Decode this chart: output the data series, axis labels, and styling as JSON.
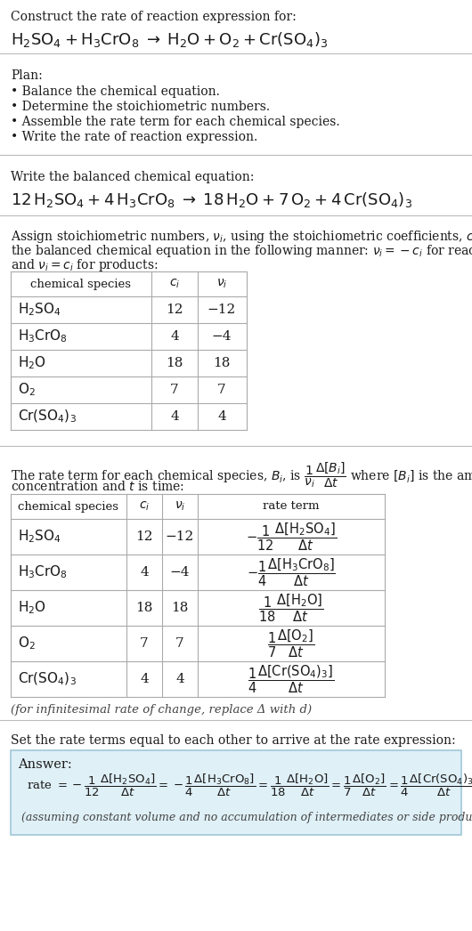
{
  "bg_color": "#ffffff",
  "text_color": "#1a1a1a",
  "title_line1": "Construct the rate of reaction expression for:",
  "plan_header": "Plan:",
  "plan_items": [
    "• Balance the chemical equation.",
    "• Determine the stoichiometric numbers.",
    "• Assemble the rate term for each chemical species.",
    "• Write the rate of reaction expression."
  ],
  "balanced_header": "Write the balanced chemical equation:",
  "table1_headers": [
    "chemical species",
    "c_i",
    "v_i"
  ],
  "table1_species": [
    "H₂SO₄",
    "H₃CrO₈",
    "H₂O",
    "O₂",
    "Cr(SO₄)₃"
  ],
  "table1_ci": [
    "12",
    "4",
    "18",
    "7",
    "4"
  ],
  "table1_vi": [
    "−12",
    "−4",
    "18",
    "7",
    "4"
  ],
  "table2_headers": [
    "chemical species",
    "c_i",
    "v_i",
    "rate term"
  ],
  "table2_species": [
    "H₂SO₄",
    "H₃CrO₈",
    "H₂O",
    "O₂",
    "Cr(SO₄)₃"
  ],
  "table2_ci": [
    "12",
    "4",
    "18",
    "7",
    "4"
  ],
  "table2_vi": [
    "−12",
    "−4",
    "18",
    "7",
    "4"
  ],
  "infinitesimal_note": "(for infinitesimal rate of change, replace Δ with d)",
  "set_equal_header": "Set the rate terms equal to each other to arrive at the rate expression:",
  "answer_box_color": "#dff0f7",
  "answer_border_color": "#a0c8d8",
  "answer_label": "Answer:",
  "assuming_note": "(assuming constant volume and no accumulation of intermediates or side products)"
}
